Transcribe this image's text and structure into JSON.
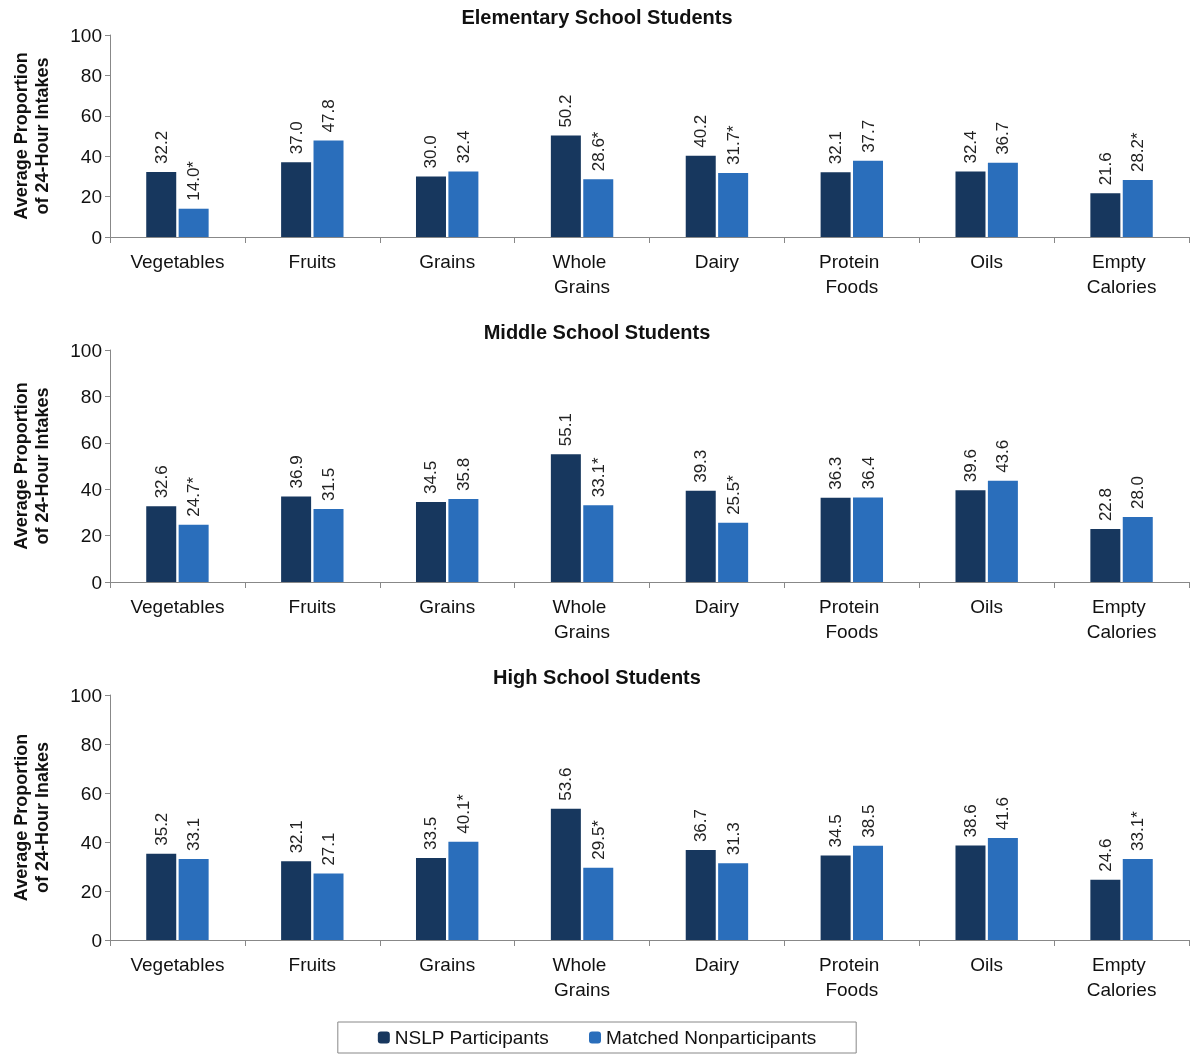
{
  "chart_data": [
    {
      "type": "bar",
      "title": "Elementary School Students",
      "ylabel": "Average Proportion of 24-Hour Intakes",
      "categories": [
        "Vegetables",
        "Fruits",
        "Grains",
        "Whole Grains",
        "Dairy",
        "Protein Foods",
        "Oils",
        "Empty Calories"
      ],
      "ylim": [
        0,
        100
      ],
      "yticks": [
        0,
        20,
        40,
        60,
        80,
        100
      ],
      "grid": false,
      "legend": false,
      "series": [
        {
          "color": "#17375e",
          "values": [
            32.2,
            37.0,
            30.0,
            50.2,
            40.2,
            32.1,
            32.4,
            21.6
          ],
          "value_labels": [
            "32.2",
            "37.0",
            "30.0",
            "50.2",
            "40.2",
            "32.1",
            "32.4",
            "21.6"
          ]
        },
        {
          "color": "#2a6ebb",
          "values": [
            14.0,
            47.8,
            32.4,
            28.6,
            31.7,
            37.7,
            36.7,
            28.2
          ],
          "value_labels": [
            "14.0*",
            "47.8",
            "32.4",
            "28.6*",
            "31.7*",
            "37.7",
            "36.7",
            "28.2*"
          ]
        }
      ]
    },
    {
      "type": "bar",
      "title": "Middle School Students",
      "ylabel": "Average Proportion of 24-Hour Intakes",
      "categories": [
        "Vegetables",
        "Fruits",
        "Grains",
        "Whole Grains",
        "Dairy",
        "Protein Foods",
        "Oils",
        "Empty Calories"
      ],
      "ylim": [
        0,
        100
      ],
      "yticks": [
        0,
        20,
        40,
        60,
        80,
        100
      ],
      "grid": false,
      "legend": false,
      "series": [
        {
          "color": "#17375e",
          "values": [
            32.6,
            36.9,
            34.5,
            55.1,
            39.3,
            36.3,
            39.6,
            22.8
          ],
          "value_labels": [
            "32.6",
            "36.9",
            "34.5",
            "55.1",
            "39.3",
            "36.3",
            "39.6",
            "22.8"
          ]
        },
        {
          "color": "#2a6ebb",
          "values": [
            24.7,
            31.5,
            35.8,
            33.1,
            25.5,
            36.4,
            43.6,
            28.0
          ],
          "value_labels": [
            "24.7*",
            "31.5",
            "35.8",
            "33.1*",
            "25.5*",
            "36.4",
            "43.6",
            "28.0"
          ]
        }
      ]
    },
    {
      "type": "bar",
      "title": "High School Students",
      "ylabel": "Average Proportion of 24-Hour Inakes",
      "categories": [
        "Vegetables",
        "Fruits",
        "Grains",
        "Whole Grains",
        "Dairy",
        "Protein Foods",
        "Oils",
        "Empty Calories"
      ],
      "ylim": [
        0,
        100
      ],
      "yticks": [
        0,
        20,
        40,
        60,
        80,
        100
      ],
      "grid": false,
      "legend": "bottom",
      "series": [
        {
          "name": "NSLP Participants",
          "color": "#17375e",
          "values": [
            35.2,
            32.1,
            33.5,
            53.6,
            36.7,
            34.5,
            38.6,
            24.6
          ],
          "value_labels": [
            "35.2",
            "32.1",
            "33.5",
            "53.6",
            "36.7",
            "34.5",
            "38.6",
            "24.6"
          ]
        },
        {
          "name": "Matched Nonparticipants",
          "color": "#2a6ebb",
          "values": [
            33.1,
            27.1,
            40.1,
            29.5,
            31.3,
            38.5,
            41.6,
            33.1
          ],
          "value_labels": [
            "33.1",
            "27.1",
            "40.1*",
            "29.5*",
            "31.3",
            "38.5",
            "41.6",
            "33.1*"
          ]
        }
      ]
    }
  ]
}
